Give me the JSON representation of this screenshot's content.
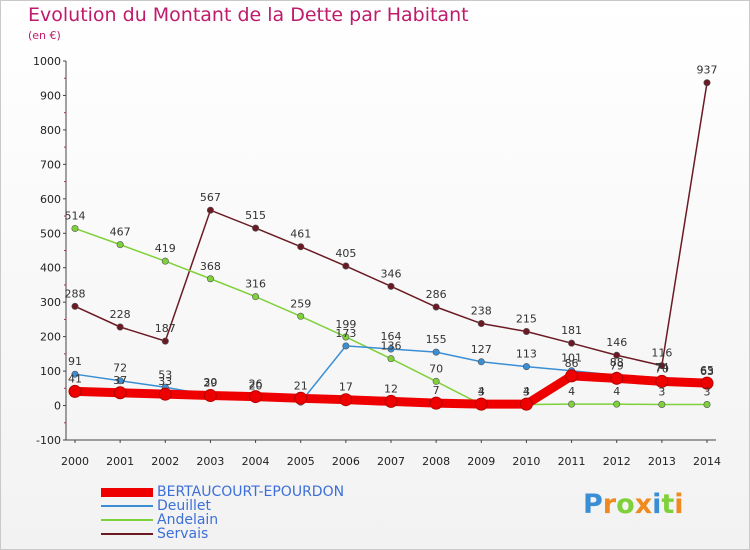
{
  "title": "Evolution du Montant de la Dette par Habitant",
  "subtitle": "(en €)",
  "chart_data": {
    "type": "line",
    "x": [
      "2000",
      "2001",
      "2002",
      "2003",
      "2004",
      "2005",
      "2006",
      "2007",
      "2008",
      "2009",
      "2010",
      "2011",
      "2012",
      "2013",
      "2014"
    ],
    "ylim": [
      -100,
      1000
    ],
    "yticks": [
      "-100",
      "0",
      "100",
      "200",
      "300",
      "400",
      "500",
      "600",
      "700",
      "800",
      "900",
      "1000"
    ],
    "grid": false,
    "legend_position": "bottom-left",
    "series": [
      {
        "name": "Servais",
        "color": "#6b1a24",
        "values": [
          288,
          228,
          187,
          567,
          515,
          461,
          405,
          346,
          286,
          238,
          215,
          181,
          146,
          116,
          937
        ],
        "labels": [
          "288",
          "228",
          "187",
          "567",
          "515",
          "461",
          "405",
          "346",
          "286",
          "238",
          "215",
          "181",
          "146",
          "116",
          "937"
        ]
      },
      {
        "name": "Andelain",
        "color": "#7fd13b",
        "values": [
          514,
          467,
          419,
          368,
          316,
          259,
          199,
          136,
          70,
          3,
          3,
          4,
          4,
          3,
          3
        ],
        "labels": [
          "514",
          "467",
          "419",
          "368",
          "316",
          "259",
          "199",
          "136",
          "70",
          "3",
          "3",
          "4",
          "4",
          "3",
          "3"
        ]
      },
      {
        "name": "Deuillet",
        "color": "#3a8fd4",
        "values": [
          91,
          72,
          53,
          30,
          20,
          10,
          173,
          164,
          155,
          127,
          113,
          101,
          88,
          74,
          63
        ],
        "labels": [
          "91",
          "72",
          "53",
          "30",
          "20",
          "",
          "173",
          "164",
          "155",
          "127",
          "113",
          "101",
          "88",
          "74",
          "63"
        ]
      },
      {
        "name": "BERTAUCOURT-EPOURDON",
        "color": "#ee0000",
        "values": [
          41,
          37,
          33,
          29,
          26,
          21,
          17,
          12,
          7,
          4,
          4,
          86,
          79,
          70,
          65
        ],
        "labels": [
          "41",
          "37",
          "33",
          "29",
          "26",
          "21",
          "17",
          "12",
          "7",
          "4",
          "4",
          "86",
          "79",
          "70",
          "65"
        ]
      }
    ]
  },
  "legend": [
    {
      "label": "BERTAUCOURT-EPOURDON",
      "color": "#ee0000",
      "thickness": 9
    },
    {
      "label": "Deuillet",
      "color": "#3a8fd4",
      "thickness": 2
    },
    {
      "label": "Andelain",
      "color": "#7fd13b",
      "thickness": 2
    },
    {
      "label": "Servais",
      "color": "#6b1a24",
      "thickness": 2
    }
  ],
  "logo": {
    "letters": [
      "P",
      "r",
      "o",
      "x",
      "i",
      "t",
      "i"
    ],
    "colors": [
      "#3a8fd4",
      "#ee8a1f",
      "#7fd13b",
      "#ee8a1f",
      "#3a8fd4",
      "#7fd13b",
      "#ee8a1f"
    ]
  }
}
